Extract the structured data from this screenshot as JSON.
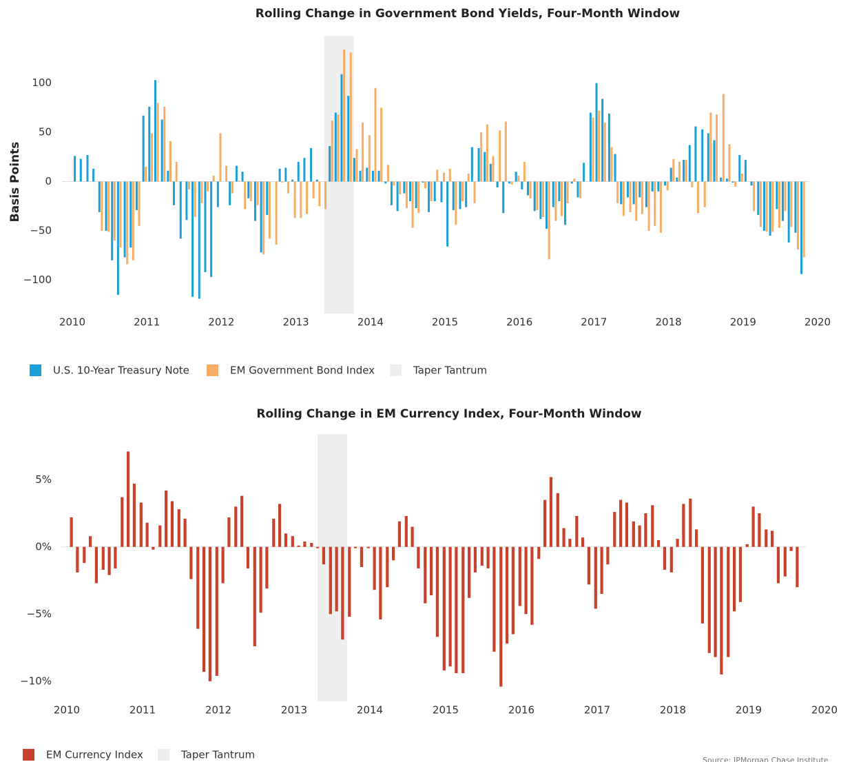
{
  "chart_data": [
    {
      "type": "bar",
      "title": "Rolling Change in Government Bond Yields, Four-Month Window",
      "y_label": "Basis Points",
      "x": [
        2010.05,
        2010.13,
        2010.22,
        2010.3,
        2010.38,
        2010.47,
        2010.55,
        2010.63,
        2010.72,
        2010.8,
        2010.88,
        2010.97,
        2011.05,
        2011.13,
        2011.22,
        2011.3,
        2011.38,
        2011.47,
        2011.55,
        2011.63,
        2011.72,
        2011.8,
        2011.88,
        2011.97,
        2012.05,
        2012.13,
        2012.22,
        2012.3,
        2012.38,
        2012.47,
        2012.55,
        2012.63,
        2012.72,
        2012.8,
        2012.88,
        2012.97,
        2013.05,
        2013.13,
        2013.22,
        2013.3,
        2013.38,
        2013.47,
        2013.55,
        2013.63,
        2013.72,
        2013.8,
        2013.88,
        2013.97,
        2014.05,
        2014.13,
        2014.22,
        2014.3,
        2014.38,
        2014.47,
        2014.55,
        2014.63,
        2014.72,
        2014.8,
        2014.88,
        2014.97,
        2015.05,
        2015.13,
        2015.22,
        2015.3,
        2015.38,
        2015.47,
        2015.55,
        2015.63,
        2015.72,
        2015.8,
        2015.88,
        2015.97,
        2016.05,
        2016.13,
        2016.22,
        2016.3,
        2016.38,
        2016.47,
        2016.55,
        2016.63,
        2016.72,
        2016.8,
        2016.88,
        2016.97,
        2017.05,
        2017.13,
        2017.22,
        2017.3,
        2017.38,
        2017.47,
        2017.55,
        2017.63,
        2017.72,
        2017.8,
        2017.88,
        2017.97,
        2018.05,
        2018.13,
        2018.22,
        2018.3,
        2018.38,
        2018.47,
        2018.55,
        2018.63,
        2018.72,
        2018.8,
        2018.88,
        2018.97,
        2019.05,
        2019.13,
        2019.22,
        2019.3,
        2019.38,
        2019.47,
        2019.55,
        2019.63,
        2019.72,
        2019.8
      ],
      "series": [
        {
          "name": "U.S. 10-Year Treasury Note",
          "color": "#1a9fd6",
          "values": [
            26,
            23,
            27,
            13,
            -31,
            -50,
            -80,
            -115,
            -77,
            -67,
            -29,
            67,
            76,
            103,
            63,
            11,
            -24,
            -58,
            -39,
            -117,
            -119,
            -92,
            -97,
            -26,
            0,
            -24,
            16,
            10,
            -17,
            -40,
            -72,
            -34,
            0,
            13,
            14,
            2,
            20,
            24,
            34,
            2,
            0,
            36,
            70,
            109,
            87,
            24,
            11,
            14,
            11,
            11,
            -2,
            -24,
            -30,
            -12,
            -20,
            -27,
            -1,
            -31,
            -20,
            -21,
            -66,
            -29,
            -28,
            -26,
            35,
            34,
            30,
            18,
            -6,
            -32,
            -2,
            10,
            -8,
            -14,
            -30,
            -38,
            -48,
            -26,
            -20,
            -44,
            -2,
            -16,
            19,
            70,
            100,
            84,
            69,
            28,
            -23,
            -16,
            -23,
            -16,
            -26,
            -10,
            -10,
            -4,
            14,
            4,
            22,
            37,
            56,
            53,
            49,
            42,
            4,
            3,
            -1,
            27,
            22,
            -4,
            -34,
            -50,
            -55,
            -28,
            -40,
            -62,
            -52,
            -94
          ]
        },
        {
          "name": "EM Government Bond Index",
          "color": "#f7ad63",
          "values": [
            null,
            null,
            null,
            null,
            -50,
            -51,
            -60,
            -67,
            -84,
            -80,
            -45,
            15,
            49,
            80,
            76,
            41,
            20,
            0,
            -8,
            -36,
            -22,
            -10,
            6,
            49,
            16,
            -12,
            1,
            -28,
            -20,
            -24,
            -74,
            -58,
            -64,
            -1,
            -12,
            -37,
            -37,
            -33,
            -17,
            -25,
            -28,
            62,
            68,
            134,
            131,
            33,
            60,
            47,
            95,
            75,
            17,
            -4,
            -13,
            -27,
            -47,
            -32,
            -7,
            -20,
            12,
            9,
            13,
            -44,
            -20,
            8,
            -22,
            50,
            58,
            26,
            52,
            61,
            -3,
            6,
            20,
            -17,
            -29,
            -36,
            -79,
            -40,
            -35,
            -22,
            3,
            -17,
            0,
            65,
            72,
            60,
            35,
            -22,
            -35,
            -31,
            -40,
            -33,
            -50,
            -45,
            -52,
            -9,
            23,
            20,
            22,
            -6,
            -32,
            -26,
            70,
            68,
            89,
            38,
            -5,
            8,
            0,
            -30,
            -46,
            -51,
            -51,
            -47,
            -30,
            -46,
            -69,
            -77
          ]
        }
      ],
      "shaded": {
        "name": "Taper Tantrum",
        "start": 2013.38,
        "end": 2013.78,
        "color": "#efefef"
      },
      "xlim": [
        2010,
        2020
      ],
      "xticks": [
        2010,
        2011,
        2012,
        2013,
        2014,
        2015,
        2016,
        2017,
        2018,
        2019,
        2020
      ],
      "ylim": [
        -134,
        148
      ],
      "yticks": [
        {
          "value": -100,
          "label": "−100"
        },
        {
          "value": -50,
          "label": "−50"
        },
        0,
        50,
        100
      ]
    },
    {
      "type": "bar",
      "title": "Rolling Change in EM Currency Index, Four-Month Window",
      "x": [
        2010.06,
        2010.14,
        2010.23,
        2010.31,
        2010.39,
        2010.48,
        2010.56,
        2010.64,
        2010.73,
        2010.81,
        2010.89,
        2010.98,
        2011.06,
        2011.14,
        2011.23,
        2011.31,
        2011.39,
        2011.48,
        2011.56,
        2011.64,
        2011.73,
        2011.81,
        2011.89,
        2011.98,
        2012.06,
        2012.14,
        2012.23,
        2012.31,
        2012.39,
        2012.48,
        2012.56,
        2012.64,
        2012.73,
        2012.81,
        2012.89,
        2012.98,
        2013.06,
        2013.14,
        2013.23,
        2013.31,
        2013.39,
        2013.48,
        2013.56,
        2013.64,
        2013.73,
        2013.81,
        2013.89,
        2013.98,
        2014.06,
        2014.14,
        2014.23,
        2014.31,
        2014.39,
        2014.48,
        2014.56,
        2014.64,
        2014.73,
        2014.81,
        2014.89,
        2014.98,
        2015.06,
        2015.14,
        2015.23,
        2015.31,
        2015.39,
        2015.48,
        2015.56,
        2015.64,
        2015.73,
        2015.81,
        2015.89,
        2015.98,
        2016.06,
        2016.14,
        2016.23,
        2016.31,
        2016.39,
        2016.48,
        2016.56,
        2016.64,
        2016.73,
        2016.81,
        2016.89,
        2016.98,
        2017.06,
        2017.14,
        2017.23,
        2017.31,
        2017.39,
        2017.48,
        2017.56,
        2017.64,
        2017.73,
        2017.81,
        2017.89,
        2017.98,
        2018.06,
        2018.14,
        2018.23,
        2018.31,
        2018.39,
        2018.48,
        2018.56,
        2018.64,
        2018.73,
        2018.81,
        2018.89,
        2018.98,
        2019.06,
        2019.14,
        2019.23,
        2019.31,
        2019.39,
        2019.48,
        2019.56,
        2019.64
      ],
      "series": [
        {
          "name": "EM Currency Index",
          "color": "#c9402b",
          "values": [
            2.2,
            -1.9,
            -1.2,
            0.8,
            -2.7,
            -1.7,
            -2.1,
            -1.6,
            3.7,
            7.1,
            4.7,
            3.3,
            1.8,
            -0.2,
            1.6,
            4.2,
            3.4,
            2.8,
            2.1,
            -2.4,
            -6.1,
            -9.3,
            -10.0,
            -9.6,
            -2.7,
            2.2,
            3.0,
            3.8,
            -1.6,
            -7.4,
            -4.9,
            -3.1,
            2.1,
            3.2,
            1.0,
            0.8,
            0.1,
            0.4,
            0.3,
            -0.1,
            -1.3,
            -5.0,
            -4.8,
            -6.9,
            -5.2,
            -0.1,
            -1.5,
            -0.1,
            -3.2,
            -5.4,
            -3.0,
            -1.0,
            1.9,
            2.3,
            1.5,
            -1.6,
            -4.2,
            -3.6,
            -6.7,
            -9.2,
            -8.9,
            -9.4,
            -9.4,
            -3.8,
            -1.9,
            -1.4,
            -1.6,
            -7.8,
            -10.4,
            -7.2,
            -6.5,
            -4.4,
            -5.0,
            -5.8,
            -0.9,
            3.5,
            5.2,
            4.0,
            1.4,
            0.6,
            2.3,
            0.7,
            -2.8,
            -4.6,
            -3.5,
            -1.3,
            2.6,
            3.5,
            3.3,
            1.9,
            1.6,
            2.5,
            3.1,
            0.5,
            -1.7,
            -1.9,
            0.6,
            3.2,
            3.6,
            1.3,
            -5.7,
            -7.9,
            -8.2,
            -9.5,
            -8.2,
            -4.8,
            -4.1,
            0.2,
            3.0,
            2.5,
            1.3,
            1.2,
            -2.7,
            -2.2,
            -0.3,
            -3.0
          ]
        }
      ],
      "shaded": {
        "name": "Taper Tantrum",
        "start": 2013.31,
        "end": 2013.7,
        "color": "#efefef"
      },
      "xlim": [
        2010,
        2020
      ],
      "xticks": [
        2010,
        2011,
        2012,
        2013,
        2014,
        2015,
        2016,
        2017,
        2018,
        2019,
        2020
      ],
      "ylim": [
        -11.5,
        8.4
      ],
      "yticks": [
        {
          "value": -10,
          "label": "−10%"
        },
        {
          "value": -5,
          "label": "−5%"
        },
        {
          "value": 0,
          "label": "0%"
        },
        {
          "value": 5,
          "label": "5%"
        }
      ],
      "source": "Source: JPMorgan Chase Institute"
    }
  ]
}
